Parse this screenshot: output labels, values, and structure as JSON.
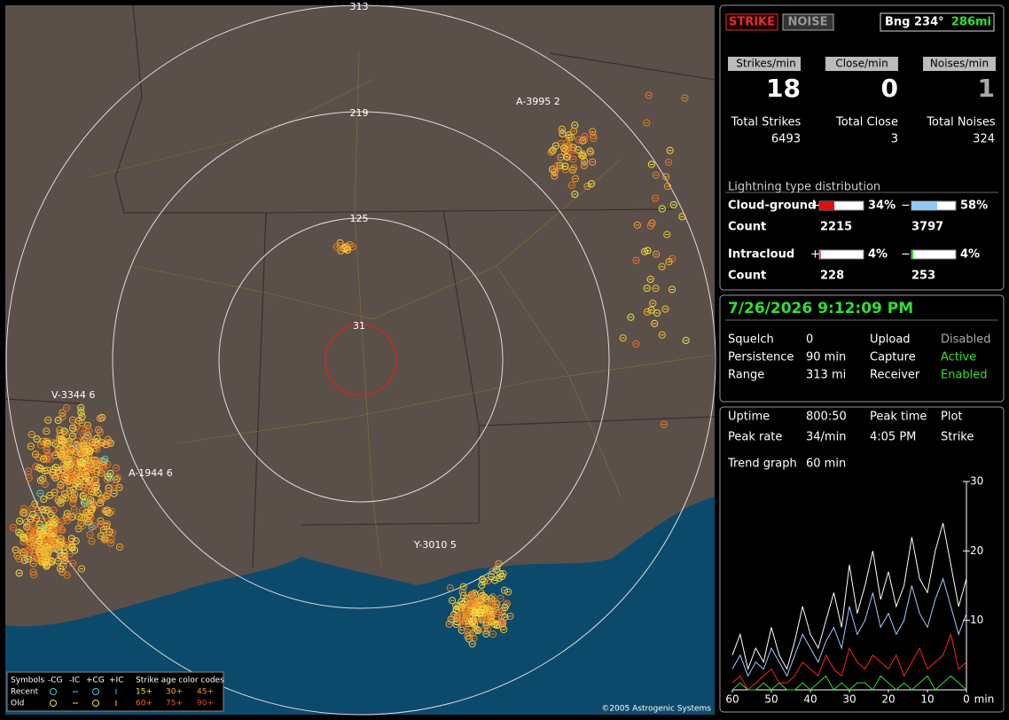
{
  "map": {
    "range_labels": [
      "313",
      "219",
      "125",
      "31"
    ],
    "strike_labels": [
      "A-3995 2",
      "V-3344 6",
      "A-1944 6",
      "Y-3010 5"
    ],
    "legend": {
      "symbols": "Symbols",
      "types": [
        "-CG",
        "-IC",
        "+CG",
        "+IC"
      ],
      "age_title": "Strike age color codes",
      "rows": [
        "Recent",
        "Old"
      ],
      "recent_ages": [
        "15+",
        "30+",
        "45+"
      ],
      "old_ages": [
        "60+",
        "75+",
        "90+"
      ]
    },
    "copyright": "©2005 Astrogenic Systems"
  },
  "status": {
    "buttons": [
      "STRIKE",
      "NOISE"
    ],
    "bearing": "Bng 234°",
    "distance": "286mi"
  },
  "rates": {
    "labels": [
      "Strikes/min",
      "Close/min",
      "Noises/min"
    ],
    "values": [
      18,
      0,
      1
    ],
    "total_labels": [
      "Total Strikes",
      "Total Close",
      "Total Noises"
    ],
    "totals": [
      6493,
      3,
      324
    ]
  },
  "distribution": {
    "title": "Lightning type distribution",
    "plus": "+",
    "minus": "−",
    "count_label": "Count",
    "rows": [
      {
        "name": "Cloud-ground",
        "plus_percent": 34,
        "plus_label": "34%",
        "minus_percent": 58,
        "minus_label": "58%",
        "plus_count": 2215,
        "minus_count": 3797
      },
      {
        "name": "Intracloud",
        "plus_percent": 4,
        "plus_label": "4%",
        "minus_percent": 4,
        "minus_label": "4%",
        "plus_count": 228,
        "minus_count": 253
      }
    ]
  },
  "clock": "7/26/2026 9:12:09 PM",
  "settings": [
    [
      "Squelch",
      "0"
    ],
    [
      "Persistence",
      "90 min"
    ],
    [
      "Range",
      "313 mi"
    ],
    [
      "Upload",
      "Disabled"
    ],
    [
      "Capture",
      "Active"
    ],
    [
      "Receiver",
      "Enabled"
    ]
  ],
  "stats": [
    [
      "Uptime",
      "800:50"
    ],
    [
      "Peak time",
      "4:05 PM"
    ],
    [
      "Plot",
      "Strike"
    ],
    [
      "Peak rate",
      "34/min"
    ],
    [
      "Trend graph",
      "60 min"
    ]
  ],
  "trend_graph": {
    "type": "line",
    "x": [
      60,
      58,
      56,
      54,
      52,
      50,
      48,
      46,
      44,
      42,
      40,
      38,
      36,
      34,
      32,
      30,
      28,
      26,
      24,
      22,
      20,
      18,
      16,
      14,
      12,
      10,
      8,
      6,
      4,
      2,
      0
    ],
    "xlim": [
      60,
      0
    ],
    "ylim": [
      0,
      30
    ],
    "xticks": [
      60,
      50,
      40,
      30,
      20,
      10,
      0
    ],
    "yticks": [
      10,
      20,
      30
    ],
    "x_label": "min",
    "series": [
      {
        "color": "#ffffff",
        "values": [
          5,
          8,
          3,
          6,
          4,
          9,
          5,
          3,
          7,
          12,
          8,
          6,
          10,
          14,
          9,
          18,
          11,
          15,
          20,
          13,
          17,
          12,
          15,
          22,
          16,
          14,
          20,
          24,
          18,
          12,
          16
        ]
      },
      {
        "color": "#a8c8ff",
        "values": [
          3,
          5,
          2,
          4,
          3,
          6,
          4,
          2,
          5,
          8,
          6,
          4,
          7,
          9,
          6,
          12,
          8,
          10,
          14,
          9,
          11,
          8,
          10,
          15,
          11,
          9,
          13,
          16,
          12,
          8,
          11
        ]
      },
      {
        "color": "#ff2020",
        "values": [
          1,
          2,
          0,
          1,
          2,
          3,
          1,
          1,
          2,
          4,
          3,
          2,
          5,
          3,
          2,
          6,
          4,
          3,
          5,
          4,
          3,
          5,
          2,
          4,
          6,
          3,
          4,
          5,
          8,
          3,
          4
        ]
      },
      {
        "color": "#30e030",
        "values": [
          0,
          1,
          0,
          0,
          1,
          0,
          1,
          0,
          0,
          1,
          0,
          1,
          2,
          0,
          1,
          0,
          1,
          1,
          0,
          2,
          1,
          0,
          1,
          0,
          1,
          2,
          0,
          1,
          2,
          1,
          0
        ]
      }
    ]
  }
}
